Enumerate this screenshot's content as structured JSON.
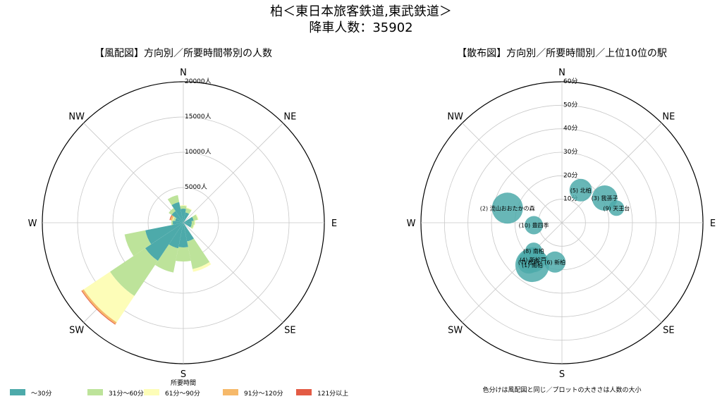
{
  "title": "柏＜東日本旅客鉄道,東武鉄道＞",
  "subtitle": "降車人数：35902",
  "colors": {
    "c30": "#4daaaa",
    "c60": "#bde39a",
    "c90": "#fdfdb8",
    "c120": "#f6b96a",
    "c121": "#e35b45"
  },
  "chart_data": [
    {
      "type": "polar-bar",
      "title": "【風配図】方向別／所要時間帯別の人数",
      "directions": [
        "N",
        "NE",
        "E",
        "SE",
        "S",
        "SW",
        "W",
        "NW"
      ],
      "r_ticks": [
        "5000人",
        "10000人",
        "15000人",
        "20000人"
      ],
      "r_max": 20000,
      "legend_title": "所要時間",
      "legend": [
        "～30分",
        "31分～60分",
        "61分～90分",
        "91分～120分",
        "121分以上"
      ],
      "wedges": [
        {
          "angle_deg": 0,
          "stack": [
            2000,
            400,
            100,
            0,
            0
          ]
        },
        {
          "angle_deg": 22.5,
          "stack": [
            1500,
            600,
            100,
            0,
            0
          ]
        },
        {
          "angle_deg": 67.5,
          "stack": [
            1500,
            600,
            100,
            0,
            0
          ]
        },
        {
          "angle_deg": 90,
          "stack": [
            1200,
            400,
            100,
            0,
            0
          ]
        },
        {
          "angle_deg": 112.5,
          "stack": [
            1200,
            300,
            100,
            0,
            0
          ]
        },
        {
          "angle_deg": 157.5,
          "stack": [
            2700,
            4000,
            400,
            0,
            0
          ]
        },
        {
          "angle_deg": 180,
          "stack": [
            3500,
            2000,
            0,
            0,
            0
          ]
        },
        {
          "angle_deg": 202.5,
          "stack": [
            3700,
            3500,
            0,
            0,
            0
          ]
        },
        {
          "angle_deg": 225,
          "stack": [
            6500,
            6000,
            4500,
            300,
            100
          ]
        },
        {
          "angle_deg": 247.5,
          "stack": [
            5500,
            3000,
            0,
            0,
            0
          ]
        },
        {
          "angle_deg": 270,
          "stack": [
            1500,
            200,
            0,
            0,
            0
          ]
        },
        {
          "angle_deg": 292.5,
          "stack": [
            1200,
            300,
            100,
            300,
            100
          ]
        },
        {
          "angle_deg": 315,
          "stack": [
            2000,
            500,
            0,
            0,
            0
          ]
        },
        {
          "angle_deg": 337.5,
          "stack": [
            3000,
            1000,
            0,
            0,
            0
          ]
        }
      ]
    },
    {
      "type": "polar-scatter",
      "title": "【散布図】方向別／所要時間別／上位10位の駅",
      "directions": [
        "N",
        "NE",
        "E",
        "SE",
        "S",
        "SW",
        "W",
        "NW"
      ],
      "r_ticks": [
        "10分",
        "20分",
        "30分",
        "40分",
        "50分",
        "60分"
      ],
      "r_max": 60,
      "footnote": "色分けは風配図と同じ／プロットの大きさは人数の大小",
      "points": [
        {
          "label": "(5) 北柏",
          "angle_deg": 30,
          "minutes": 16,
          "size": 16
        },
        {
          "label": "(3) 我孫子",
          "angle_deg": 60,
          "minutes": 21,
          "size": 18
        },
        {
          "label": "(9) 天王台",
          "angle_deg": 75,
          "minutes": 24,
          "size": 11
        },
        {
          "label": "(2) 流山おおたかの森",
          "angle_deg": 285,
          "minutes": 24,
          "size": 22
        },
        {
          "label": "(10) 豊四季",
          "angle_deg": 265,
          "minutes": 12,
          "size": 13
        },
        {
          "label": "(7) 松戸",
          "angle_deg": 220,
          "minutes": 22,
          "size": 16
        },
        {
          "label": "(8) 南柏",
          "angle_deg": 225,
          "minutes": 17,
          "size": 12
        },
        {
          "label": "(4) 新松戸",
          "angle_deg": 218,
          "minutes": 20,
          "size": 18
        },
        {
          "label": "(1) 南柏",
          "angle_deg": 215,
          "minutes": 22,
          "size": 24
        },
        {
          "label": "(6) 新柏",
          "angle_deg": 190,
          "minutes": 17,
          "size": 15
        }
      ]
    }
  ]
}
